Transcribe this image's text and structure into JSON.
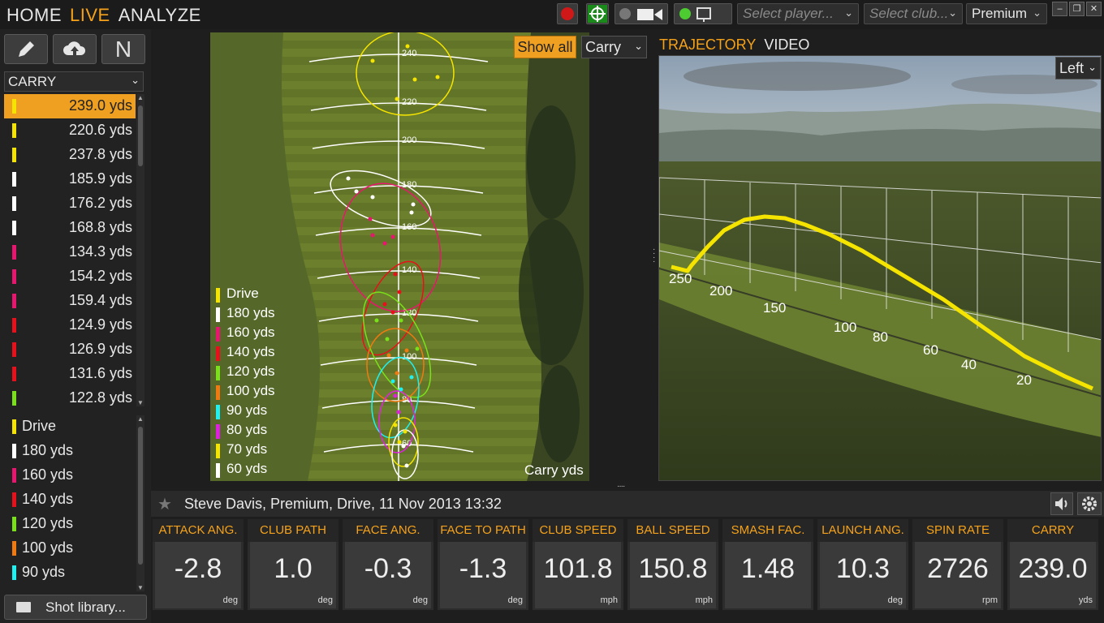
{
  "nav": {
    "home": "HOME",
    "live": "LIVE",
    "analyze": "ANALYZE"
  },
  "toolbar": {
    "select_player": "Select player...",
    "select_club": "Select club...",
    "ball_type": "Premium"
  },
  "left": {
    "carry_select": "CARRY",
    "shots": [
      {
        "value": "239.0 yds",
        "color": "#f5e400"
      },
      {
        "value": "220.6 yds",
        "color": "#f5e400"
      },
      {
        "value": "237.8 yds",
        "color": "#f5e400"
      },
      {
        "value": "185.9 yds",
        "color": "#ffffff"
      },
      {
        "value": "176.2 yds",
        "color": "#ffffff"
      },
      {
        "value": "168.8 yds",
        "color": "#ffffff"
      },
      {
        "value": "134.3 yds",
        "color": "#e8166e"
      },
      {
        "value": "154.2 yds",
        "color": "#e8166e"
      },
      {
        "value": "159.4 yds",
        "color": "#e8166e"
      },
      {
        "value": "124.9 yds",
        "color": "#e8101a"
      },
      {
        "value": "126.9 yds",
        "color": "#e8101a"
      },
      {
        "value": "131.6 yds",
        "color": "#e8101a"
      },
      {
        "value": "122.8 yds",
        "color": "#7ae01a"
      }
    ],
    "legend": [
      {
        "label": "Drive",
        "color": "#f5e400"
      },
      {
        "label": "180 yds",
        "color": "#ffffff"
      },
      {
        "label": "160 yds",
        "color": "#e8166e"
      },
      {
        "label": "140 yds",
        "color": "#e8101a"
      },
      {
        "label": "120 yds",
        "color": "#7ae01a"
      },
      {
        "label": "100 yds",
        "color": "#f07a10"
      },
      {
        "label": "90 yds",
        "color": "#20f0f0"
      }
    ],
    "shot_library": "Shot library..."
  },
  "map": {
    "show_all": "Show all",
    "carry_dropdown": "Carry",
    "legend": [
      {
        "label": "Drive",
        "color": "#f5e400"
      },
      {
        "label": "180 yds",
        "color": "#ffffff"
      },
      {
        "label": "160 yds",
        "color": "#e8166e"
      },
      {
        "label": "140 yds",
        "color": "#e8101a"
      },
      {
        "label": "120 yds",
        "color": "#7ae01a"
      },
      {
        "label": "100 yds",
        "color": "#f07a10"
      },
      {
        "label": "90 yds",
        "color": "#20f0f0"
      },
      {
        "label": "80 yds",
        "color": "#e020e0"
      },
      {
        "label": "70 yds",
        "color": "#f5e400"
      },
      {
        "label": "60 yds",
        "color": "#ffffff"
      }
    ],
    "distance_marks": [
      "240",
      "220",
      "200",
      "180",
      "160",
      "140",
      "120",
      "100",
      "80",
      "60"
    ],
    "footer": "Carry  yds"
  },
  "tabs": {
    "trajectory": "TRAJECTORY",
    "video": "VIDEO"
  },
  "view3d": {
    "side_dropdown": "Left",
    "distance_labels": [
      "250",
      "200",
      "150",
      "100",
      "80",
      "60",
      "40",
      "20"
    ]
  },
  "info": {
    "text": "Steve Davis, Premium, Drive, 11 Nov 2013 13:32"
  },
  "metrics": [
    {
      "label": "ATTACK ANG.",
      "value": "-2.8",
      "unit": "deg"
    },
    {
      "label": "CLUB PATH",
      "value": "1.0",
      "unit": "deg"
    },
    {
      "label": "FACE ANG.",
      "value": "-0.3",
      "unit": "deg"
    },
    {
      "label": "FACE TO PATH",
      "value": "-1.3",
      "unit": "deg"
    },
    {
      "label": "CLUB SPEED",
      "value": "101.8",
      "unit": "mph"
    },
    {
      "label": "BALL SPEED",
      "value": "150.8",
      "unit": "mph"
    },
    {
      "label": "SMASH FAC.",
      "value": "1.48",
      "unit": ""
    },
    {
      "label": "LAUNCH ANG.",
      "value": "10.3",
      "unit": "deg"
    },
    {
      "label": "SPIN RATE",
      "value": "2726",
      "unit": "rpm"
    },
    {
      "label": "CARRY",
      "value": "239.0",
      "unit": "yds"
    }
  ],
  "colors": {
    "accent": "#f5a21a",
    "selected_row": "#f0a020"
  }
}
